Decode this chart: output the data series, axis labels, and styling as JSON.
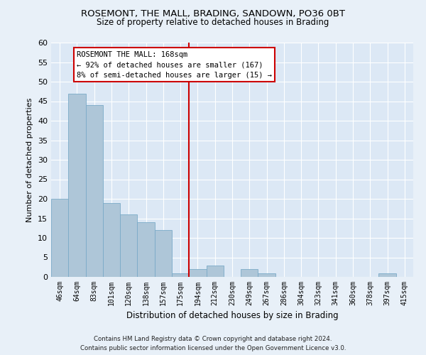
{
  "title": "ROSEMONT, THE MALL, BRADING, SANDOWN, PO36 0BT",
  "subtitle": "Size of property relative to detached houses in Brading",
  "xlabel": "Distribution of detached houses by size in Brading",
  "ylabel": "Number of detached properties",
  "categories": [
    "46sqm",
    "64sqm",
    "83sqm",
    "101sqm",
    "120sqm",
    "138sqm",
    "157sqm",
    "175sqm",
    "194sqm",
    "212sqm",
    "230sqm",
    "249sqm",
    "267sqm",
    "286sqm",
    "304sqm",
    "323sqm",
    "341sqm",
    "360sqm",
    "378sqm",
    "397sqm",
    "415sqm"
  ],
  "values": [
    20,
    47,
    44,
    19,
    16,
    14,
    12,
    1,
    2,
    3,
    0,
    2,
    1,
    0,
    0,
    0,
    0,
    0,
    0,
    1,
    0
  ],
  "bar_color": "#aec6d8",
  "bar_edge_color": "#7aaac8",
  "vline_color": "#cc0000",
  "annotation_text": "ROSEMONT THE MALL: 168sqm\n← 92% of detached houses are smaller (167)\n8% of semi-detached houses are larger (15) →",
  "ylim": [
    0,
    60
  ],
  "yticks": [
    0,
    5,
    10,
    15,
    20,
    25,
    30,
    35,
    40,
    45,
    50,
    55,
    60
  ],
  "background_color": "#dce8f5",
  "grid_color": "#ffffff",
  "fig_background": "#e8f0f8",
  "footer_line1": "Contains HM Land Registry data © Crown copyright and database right 2024.",
  "footer_line2": "Contains public sector information licensed under the Open Government Licence v3.0."
}
